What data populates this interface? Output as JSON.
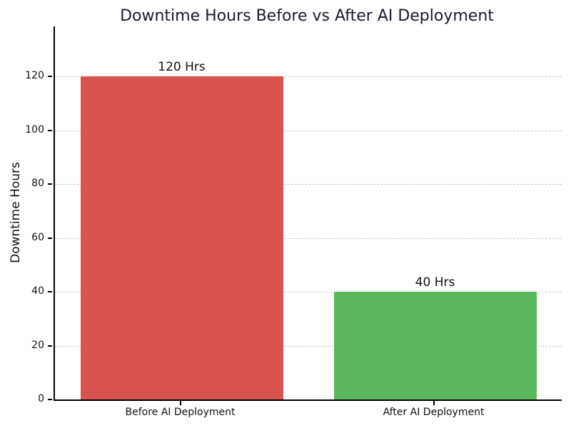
{
  "chart_data": {
    "type": "bar",
    "title": "Downtime Hours Before vs After AI Deployment",
    "ylabel": "Downtime Hours",
    "xlabel": "",
    "categories": [
      "Before AI Deployment",
      "After AI Deployment"
    ],
    "values": [
      120,
      40
    ],
    "bar_labels": [
      "120 Hrs",
      "40 Hrs"
    ],
    "bar_colors": [
      "#d9534f",
      "#5cb85c"
    ],
    "yticks": [
      0,
      20,
      40,
      60,
      80,
      100,
      120
    ],
    "ylim": [
      0,
      138.6
    ],
    "grid": "horizontal-dashed",
    "gridline_color": "#cccccc",
    "legend": "none",
    "title_color": "#1a1a2e"
  }
}
